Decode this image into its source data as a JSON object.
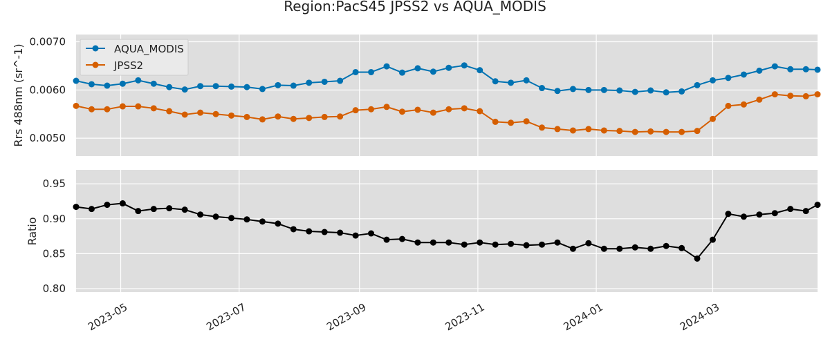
{
  "chart_data": {
    "title": "Region:PacS45 JPSS2 vs AQUA_MODIS",
    "x_tick_labels": [
      "2023-05",
      "2023-07",
      "2023-09",
      "2023-11",
      "2024-01",
      "2024-03"
    ],
    "x_tick_dates": [
      "2023-05-01",
      "2023-07-01",
      "2023-09-01",
      "2023-11-01",
      "2024-01-01",
      "2024-03-01"
    ],
    "xlim": [
      "2023-04-08",
      "2024-04-24"
    ],
    "x": [
      "2023-04-08",
      "2023-04-16",
      "2023-04-24",
      "2023-05-02",
      "2023-05-10",
      "2023-05-18",
      "2023-05-26",
      "2023-06-03",
      "2023-06-11",
      "2023-06-19",
      "2023-06-27",
      "2023-07-05",
      "2023-07-13",
      "2023-07-21",
      "2023-07-29",
      "2023-08-06",
      "2023-08-14",
      "2023-08-22",
      "2023-08-30",
      "2023-09-07",
      "2023-09-15",
      "2023-09-23",
      "2023-10-01",
      "2023-10-09",
      "2023-10-17",
      "2023-10-25",
      "2023-11-02",
      "2023-11-10",
      "2023-11-18",
      "2023-11-26",
      "2023-12-04",
      "2023-12-12",
      "2023-12-20",
      "2023-12-28",
      "2024-01-05",
      "2024-01-13",
      "2024-01-21",
      "2024-01-29",
      "2024-02-06",
      "2024-02-14",
      "2024-02-22",
      "2024-03-01",
      "2024-03-09",
      "2024-03-17",
      "2024-03-25",
      "2024-04-02",
      "2024-04-10",
      "2024-04-18",
      "2024-04-24"
    ],
    "panels": [
      {
        "type": "line",
        "ylabel": "Rrs 488nm (sr^-1)",
        "ylim": [
          0.00463,
          0.00715
        ],
        "yticks": [
          0.005,
          0.006,
          0.007
        ],
        "ytick_labels": [
          "0.0050",
          "0.0060",
          "0.0070"
        ],
        "grid": true,
        "legend": "top-left",
        "series": [
          {
            "name": "AQUA_MODIS",
            "color": "#0072b2",
            "values": [
              0.00619,
              0.00612,
              0.00609,
              0.00613,
              0.0062,
              0.00613,
              0.00606,
              0.00601,
              0.00608,
              0.00608,
              0.00607,
              0.00606,
              0.00602,
              0.0061,
              0.00609,
              0.00615,
              0.00617,
              0.00619,
              0.00637,
              0.00637,
              0.00649,
              0.00636,
              0.00645,
              0.00638,
              0.00646,
              0.00651,
              0.00641,
              0.00618,
              0.00615,
              0.0062,
              0.00604,
              0.00598,
              0.00602,
              0.006,
              0.006,
              0.00599,
              0.00596,
              0.00599,
              0.00595,
              0.00597,
              0.0061,
              0.0062,
              0.00625,
              0.00632,
              0.0064,
              0.00649,
              0.00643,
              0.00643,
              0.00642
            ]
          },
          {
            "name": "JPSS2",
            "color": "#d55e00",
            "values": [
              0.00567,
              0.0056,
              0.0056,
              0.00566,
              0.00566,
              0.00562,
              0.00556,
              0.00549,
              0.00553,
              0.0055,
              0.00547,
              0.00544,
              0.00539,
              0.00545,
              0.0054,
              0.00542,
              0.00544,
              0.00545,
              0.00558,
              0.0056,
              0.00565,
              0.00555,
              0.00559,
              0.00553,
              0.0056,
              0.00562,
              0.00556,
              0.00534,
              0.00532,
              0.00535,
              0.00522,
              0.00519,
              0.00516,
              0.00519,
              0.00516,
              0.00515,
              0.00513,
              0.00514,
              0.00513,
              0.00513,
              0.00515,
              0.0054,
              0.00567,
              0.0057,
              0.0058,
              0.00591,
              0.00588,
              0.00587,
              0.00591
            ]
          }
        ]
      },
      {
        "type": "line",
        "ylabel": "Ratio",
        "ylim": [
          0.795,
          0.97
        ],
        "yticks": [
          0.8,
          0.85,
          0.9,
          0.95
        ],
        "ytick_labels": [
          "0.80",
          "0.85",
          "0.90",
          "0.95"
        ],
        "grid": true,
        "series": [
          {
            "color": "#000000",
            "values": [
              0.917,
              0.914,
              0.92,
              0.922,
              0.911,
              0.914,
              0.915,
              0.913,
              0.906,
              0.903,
              0.901,
              0.899,
              0.896,
              0.893,
              0.885,
              0.882,
              0.881,
              0.88,
              0.876,
              0.879,
              0.87,
              0.871,
              0.866,
              0.866,
              0.866,
              0.863,
              0.866,
              0.863,
              0.864,
              0.862,
              0.863,
              0.866,
              0.857,
              0.865,
              0.857,
              0.857,
              0.859,
              0.857,
              0.861,
              0.858,
              0.843,
              0.87,
              0.907,
              0.903,
              0.906,
              0.908,
              0.914,
              0.911,
              0.92
            ]
          }
        ]
      }
    ]
  }
}
